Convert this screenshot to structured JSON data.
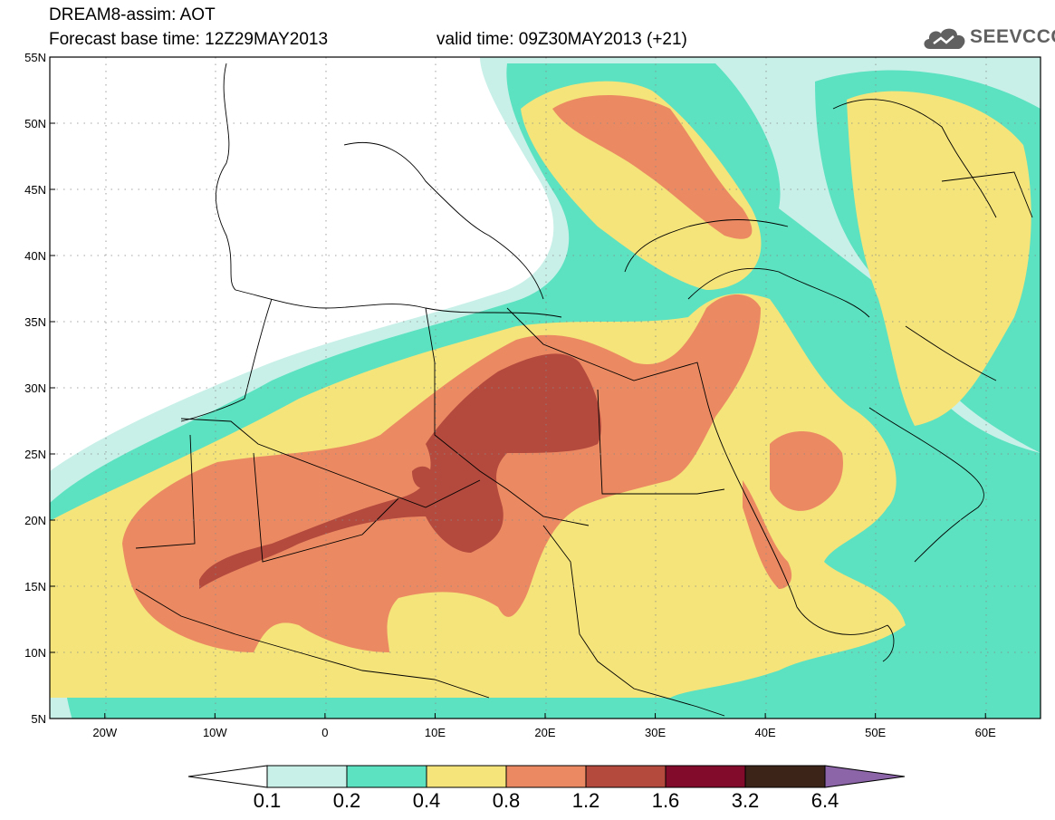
{
  "header": {
    "line1": "DREAM8-assim: AOT",
    "line2": "Forecast base time: 12Z29MAY2013",
    "line3": "valid time: 09Z30MAY2013 (+21)"
  },
  "logo": {
    "text": "SEEVCCC",
    "icon": "cloud-icon"
  },
  "map": {
    "lat_labels": [
      "55N",
      "50N",
      "45N",
      "40N",
      "35N",
      "30N",
      "25N",
      "20N",
      "15N",
      "10N",
      "5N"
    ],
    "lon_labels": [
      "20W",
      "10W",
      "0",
      "10E",
      "20E",
      "30E",
      "40E",
      "50E",
      "60E"
    ],
    "lon_range": [
      -25,
      65
    ],
    "lat_range": [
      5,
      55
    ]
  },
  "legend": {
    "colors": [
      "#ffffff",
      "#c8f0e8",
      "#5ce2c0",
      "#f5e47a",
      "#eb8a62",
      "#b44a3e",
      "#820a2a",
      "#3c2418",
      "#8c64a8"
    ],
    "levels": [
      "0.1",
      "0.2",
      "0.4",
      "0.8",
      "1.2",
      "1.6",
      "3.2",
      "6.4"
    ]
  }
}
